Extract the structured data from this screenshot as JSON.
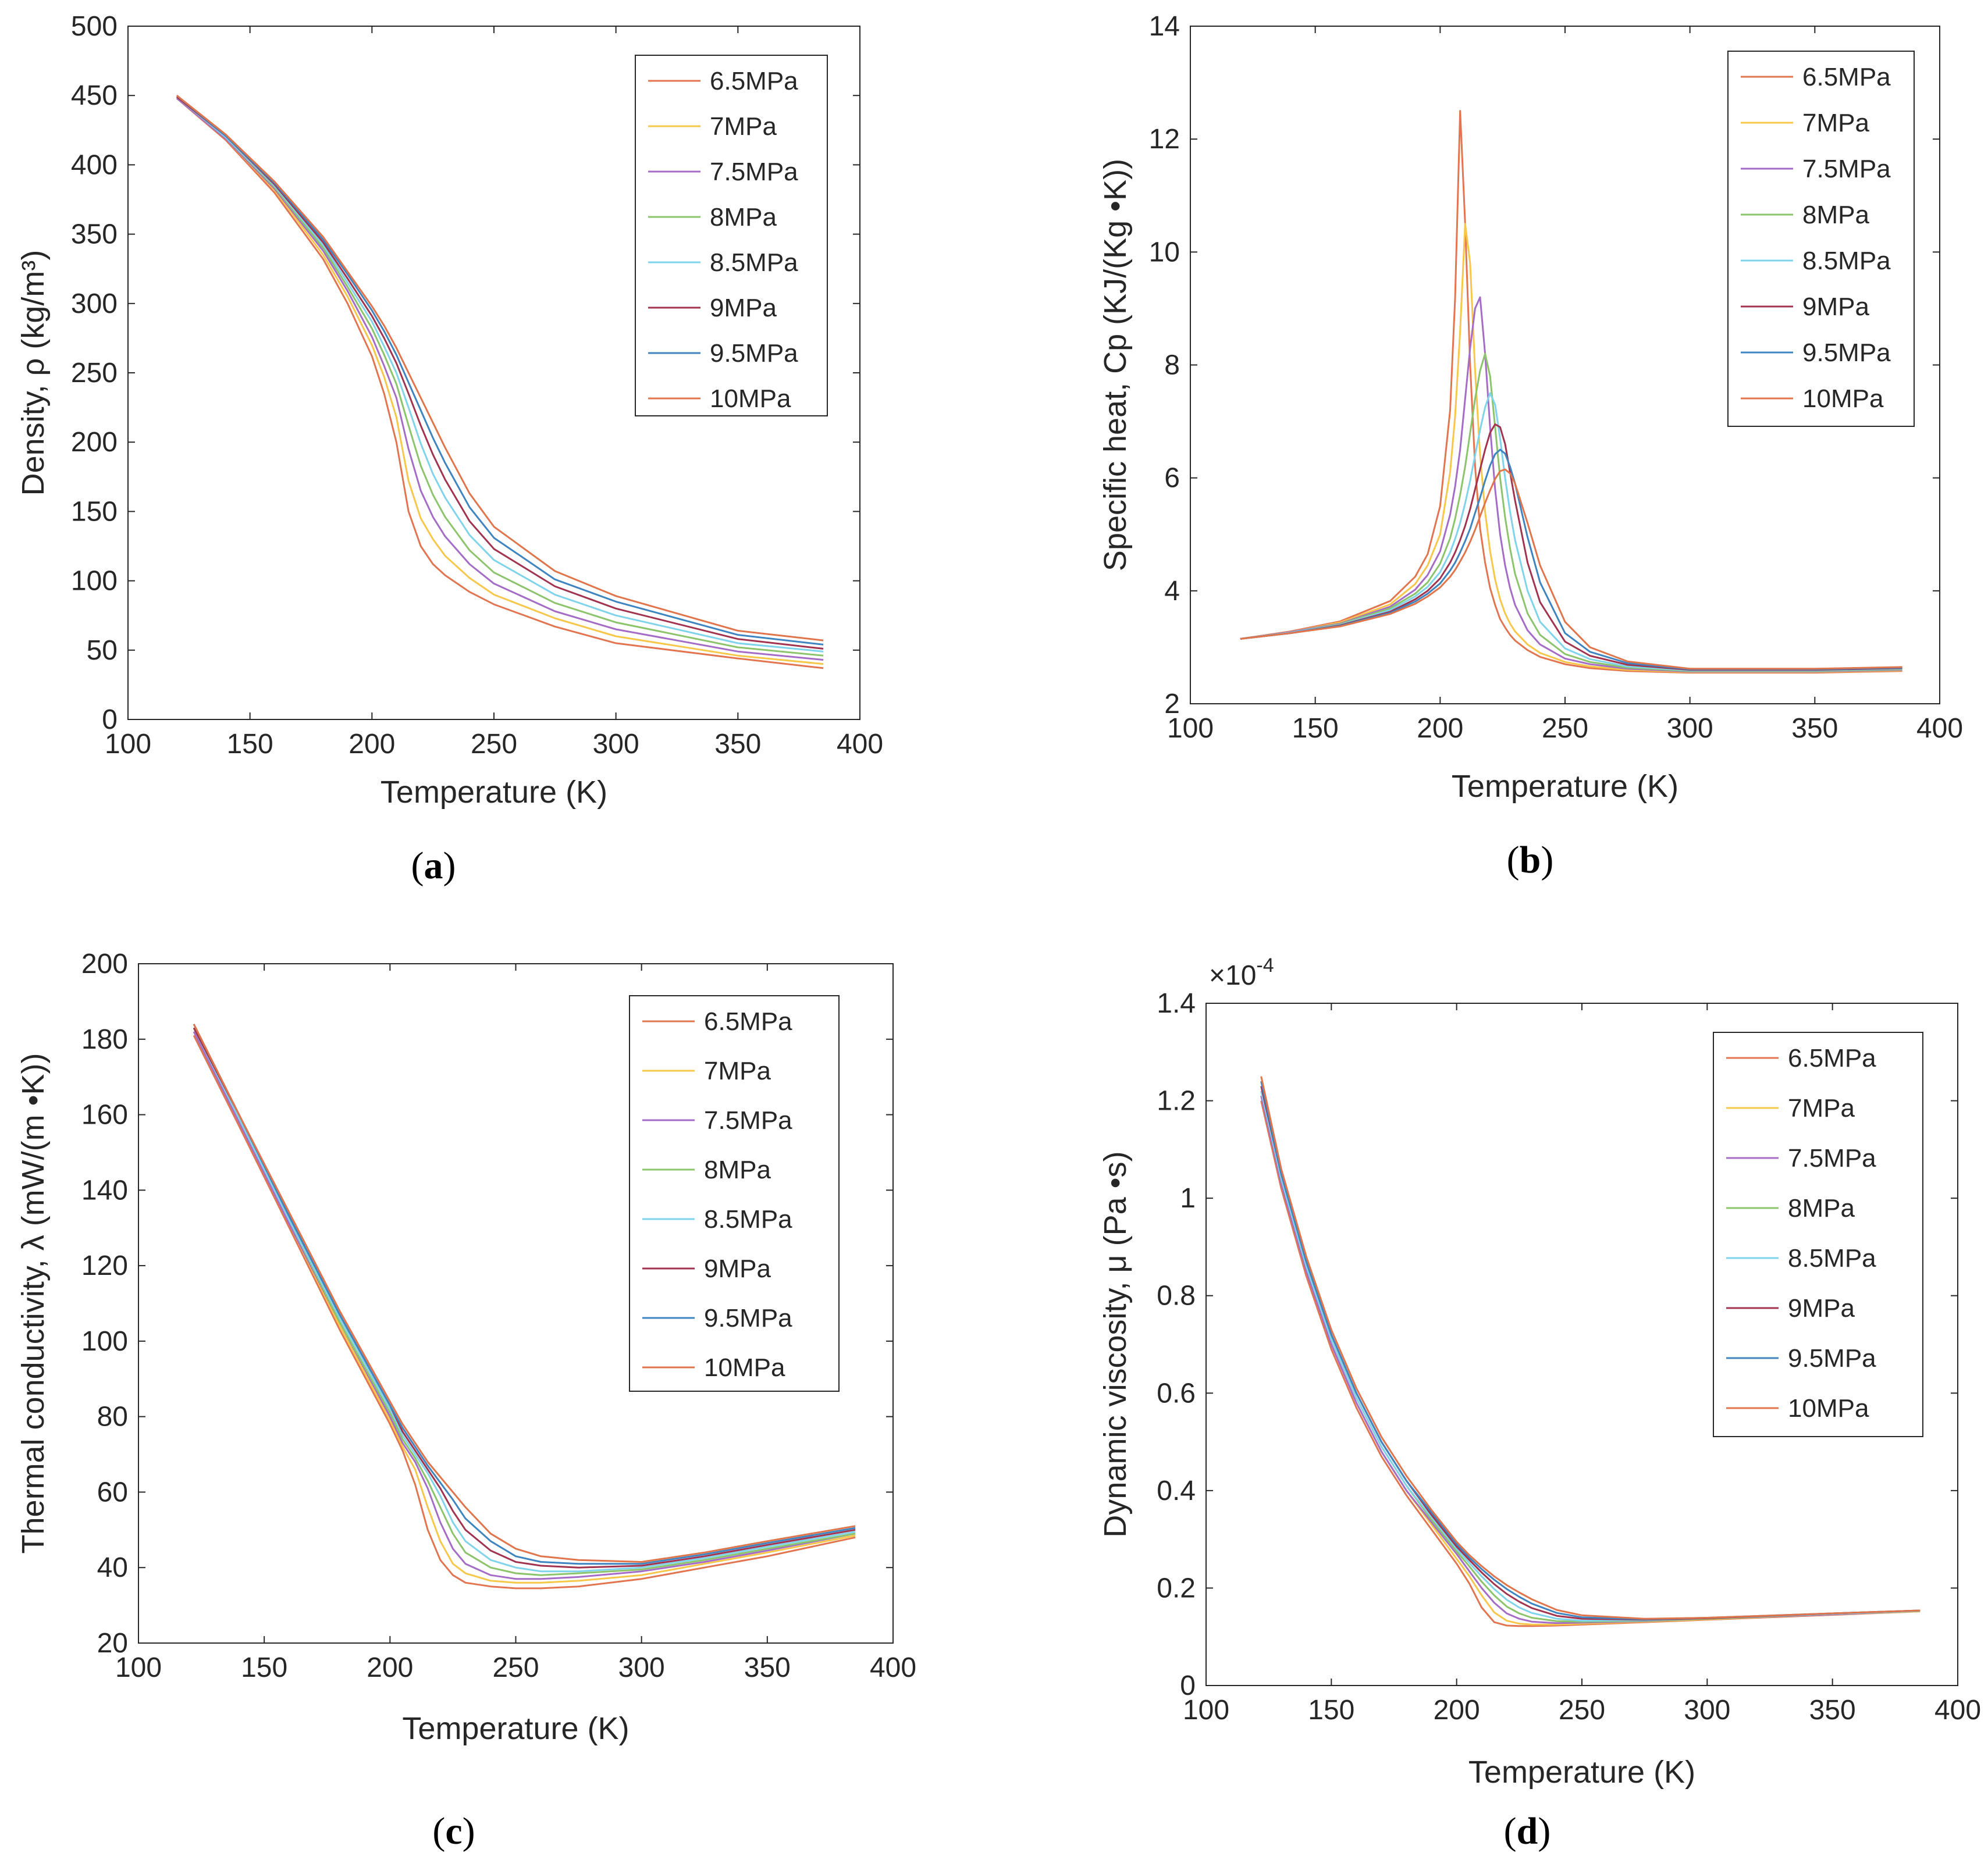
{
  "series_names": [
    "6.5MPa",
    "7MPa",
    "7.5MPa",
    "8MPa",
    "8.5MPa",
    "9MPa",
    "9.5MPa",
    "10MPa"
  ],
  "series_colors": [
    "#E2754F",
    "#F7C74A",
    "#A56CC7",
    "#8BC46A",
    "#7FD3EA",
    "#A2334F",
    "#3D84C0",
    "#E0744A"
  ],
  "chart_data": [
    {
      "type": "line",
      "panel": "(a)",
      "caption_letter": "a",
      "title": "",
      "xlabel": "Temperature (K)",
      "ylabel": "Density, ρ (kg/m³)",
      "xlim": [
        100,
        400
      ],
      "ylim": [
        0,
        500
      ],
      "xticks": [
        100,
        150,
        200,
        250,
        300,
        350,
        400
      ],
      "yticks": [
        0,
        50,
        100,
        150,
        200,
        250,
        300,
        350,
        400,
        450,
        500
      ],
      "legend_position": "top-right",
      "x": [
        120,
        140,
        160,
        180,
        190,
        200,
        205,
        210,
        215,
        220,
        225,
        230,
        240,
        250,
        275,
        300,
        350,
        385
      ],
      "series": [
        {
          "name": "6.5MPa",
          "values": [
            448,
            418,
            380,
            332,
            300,
            262,
            235,
            200,
            150,
            125,
            112,
            104,
            92,
            83,
            67,
            55,
            44,
            37
          ]
        },
        {
          "name": "7MPa",
          "values": [
            448,
            419,
            382,
            335,
            305,
            270,
            247,
            218,
            172,
            145,
            130,
            118,
            102,
            90,
            73,
            60,
            46,
            40
          ]
        },
        {
          "name": "7.5MPa",
          "values": [
            448,
            419,
            383,
            338,
            309,
            276,
            255,
            232,
            195,
            165,
            146,
            132,
            112,
            98,
            78,
            65,
            49,
            43
          ]
        },
        {
          "name": "8MPa",
          "values": [
            449,
            420,
            384,
            340,
            312,
            282,
            263,
            242,
            212,
            183,
            162,
            146,
            122,
            106,
            84,
            70,
            52,
            46
          ]
        },
        {
          "name": "8.5MPa",
          "values": [
            449,
            420,
            385,
            342,
            315,
            287,
            269,
            250,
            225,
            199,
            177,
            160,
            133,
            115,
            90,
            75,
            55,
            49
          ]
        },
        {
          "name": "9MPa",
          "values": [
            449,
            421,
            386,
            344,
            318,
            291,
            275,
            257,
            235,
            212,
            191,
            173,
            143,
            123,
            96,
            80,
            58,
            51
          ]
        },
        {
          "name": "9.5MPa",
          "values": [
            450,
            421,
            387,
            346,
            321,
            295,
            280,
            263,
            243,
            223,
            203,
            185,
            153,
            131,
            101,
            85,
            61,
            54
          ]
        },
        {
          "name": "10MPa",
          "values": [
            450,
            422,
            388,
            348,
            323,
            298,
            284,
            268,
            250,
            232,
            214,
            196,
            163,
            139,
            107,
            89,
            64,
            57
          ]
        }
      ]
    },
    {
      "type": "line",
      "panel": "(b)",
      "caption_letter": "b",
      "title": "",
      "xlabel": "Temperature (K)",
      "ylabel": "Specific heat, Cp (KJ/(Kg •K))",
      "xlim": [
        100,
        400
      ],
      "ylim": [
        2,
        14
      ],
      "xticks": [
        100,
        150,
        200,
        250,
        300,
        350,
        400
      ],
      "yticks": [
        2,
        4,
        6,
        8,
        10,
        12,
        14
      ],
      "legend_position": "top-right",
      "x": [
        120,
        140,
        160,
        180,
        190,
        195,
        200,
        204,
        206,
        208,
        210,
        212,
        214,
        216,
        218,
        220,
        222,
        224,
        226,
        228,
        230,
        235,
        240,
        250,
        260,
        275,
        300,
        350,
        385
      ],
      "series": [
        {
          "name": "6.5MPa",
          "values": [
            3.15,
            3.28,
            3.46,
            3.82,
            4.25,
            4.65,
            5.5,
            7.2,
            9.2,
            12.5,
            10.5,
            8.0,
            6.2,
            5.1,
            4.5,
            4.05,
            3.75,
            3.5,
            3.35,
            3.22,
            3.12,
            2.95,
            2.83,
            2.7,
            2.63,
            2.58,
            2.55,
            2.55,
            2.58
          ]
        },
        {
          "name": "7MPa",
          "values": [
            3.15,
            3.27,
            3.44,
            3.76,
            4.12,
            4.45,
            5.0,
            6.1,
            7.1,
            8.6,
            10.5,
            9.8,
            7.9,
            6.4,
            5.4,
            4.7,
            4.2,
            3.85,
            3.6,
            3.42,
            3.28,
            3.05,
            2.9,
            2.74,
            2.66,
            2.6,
            2.56,
            2.56,
            2.59
          ]
        },
        {
          "name": "7.5MPa",
          "values": [
            3.15,
            3.27,
            3.42,
            3.72,
            4.02,
            4.28,
            4.7,
            5.35,
            5.85,
            6.5,
            7.4,
            8.3,
            9.0,
            9.2,
            8.2,
            6.9,
            5.8,
            5.0,
            4.45,
            4.05,
            3.75,
            3.3,
            3.05,
            2.8,
            2.7,
            2.62,
            2.57,
            2.57,
            2.6
          ]
        },
        {
          "name": "8MPa",
          "values": [
            3.15,
            3.26,
            3.41,
            3.69,
            3.95,
            4.15,
            4.48,
            4.93,
            5.28,
            5.7,
            6.2,
            6.8,
            7.4,
            7.9,
            8.2,
            7.8,
            6.9,
            6.0,
            5.3,
            4.75,
            4.3,
            3.6,
            3.22,
            2.88,
            2.74,
            2.64,
            2.58,
            2.58,
            2.61
          ]
        },
        {
          "name": "8.5MPa",
          "values": [
            3.15,
            3.26,
            3.4,
            3.66,
            3.9,
            4.07,
            4.33,
            4.68,
            4.92,
            5.2,
            5.55,
            5.95,
            6.4,
            6.85,
            7.25,
            7.5,
            7.3,
            6.7,
            6.0,
            5.4,
            4.9,
            4.0,
            3.45,
            2.98,
            2.79,
            2.66,
            2.59,
            2.59,
            2.62
          ]
        },
        {
          "name": "9MPa",
          "values": [
            3.15,
            3.25,
            3.39,
            3.63,
            3.85,
            4.0,
            4.22,
            4.5,
            4.68,
            4.9,
            5.15,
            5.45,
            5.8,
            6.15,
            6.5,
            6.8,
            6.95,
            6.9,
            6.6,
            6.1,
            5.6,
            4.5,
            3.8,
            3.1,
            2.85,
            2.69,
            2.6,
            2.6,
            2.63
          ]
        },
        {
          "name": "9.5MPa",
          "values": [
            3.15,
            3.25,
            3.38,
            3.61,
            3.81,
            3.95,
            4.13,
            4.36,
            4.5,
            4.68,
            4.88,
            5.1,
            5.38,
            5.65,
            5.95,
            6.22,
            6.42,
            6.5,
            6.43,
            6.2,
            5.9,
            4.95,
            4.15,
            3.25,
            2.92,
            2.72,
            2.61,
            2.61,
            2.64
          ]
        },
        {
          "name": "10MPa",
          "values": [
            3.15,
            3.25,
            3.37,
            3.59,
            3.77,
            3.9,
            4.06,
            4.25,
            4.37,
            4.52,
            4.68,
            4.87,
            5.08,
            5.32,
            5.56,
            5.78,
            5.98,
            6.12,
            6.15,
            6.08,
            5.9,
            5.2,
            4.45,
            3.45,
            3.0,
            2.75,
            2.62,
            2.62,
            2.65
          ]
        }
      ]
    },
    {
      "type": "line",
      "panel": "(c)",
      "caption_letter": "c",
      "title": "",
      "xlabel": "Temperature (K)",
      "ylabel": "Thermal conductivity, λ (mW/(m •K))",
      "xlim": [
        100,
        400
      ],
      "ylim": [
        20,
        200
      ],
      "xticks": [
        100,
        150,
        200,
        250,
        300,
        350,
        400
      ],
      "yticks": [
        20,
        40,
        60,
        80,
        100,
        120,
        140,
        160,
        180,
        200
      ],
      "legend_position": "top-right",
      "x": [
        122,
        140,
        160,
        180,
        200,
        205,
        210,
        215,
        220,
        225,
        230,
        240,
        250,
        260,
        275,
        300,
        325,
        350,
        385
      ],
      "series": [
        {
          "name": "6.5MPa",
          "values": [
            181,
            157,
            130,
            103,
            78,
            71,
            62,
            50,
            42,
            38,
            36,
            35,
            34.5,
            34.5,
            35,
            37,
            40,
            43,
            48
          ]
        },
        {
          "name": "7MPa",
          "values": [
            182,
            158,
            131,
            104,
            79,
            72,
            66,
            56,
            47,
            41,
            38.5,
            36.5,
            36,
            36,
            36.5,
            38,
            41,
            44,
            48.5
          ]
        },
        {
          "name": "7.5MPa",
          "values": [
            182,
            158,
            131,
            105,
            80,
            73,
            68,
            61,
            52,
            45,
            41,
            38,
            37,
            37,
            37.5,
            39,
            41.5,
            44.5,
            49
          ]
        },
        {
          "name": "8MPa",
          "values": [
            183,
            159,
            132,
            105,
            81,
            74,
            69,
            63,
            56,
            49,
            44,
            40,
            38.5,
            38,
            38.5,
            39.5,
            42,
            45,
            49
          ]
        },
        {
          "name": "8.5MPa",
          "values": [
            183,
            159,
            132,
            106,
            82,
            75,
            70,
            65,
            59,
            52,
            47,
            42,
            40,
            39,
            39,
            40,
            42.5,
            45.5,
            49.5
          ]
        },
        {
          "name": "9MPa",
          "values": [
            183,
            160,
            133,
            107,
            83,
            76,
            71,
            66,
            61,
            55,
            50,
            44.5,
            41.5,
            40.5,
            40,
            40.5,
            43,
            46,
            50
          ]
        },
        {
          "name": "9.5MPa",
          "values": [
            184,
            160,
            133,
            107,
            83,
            77,
            72,
            67,
            62.5,
            58,
            53,
            47,
            43,
            41.5,
            41,
            41,
            43.5,
            46.5,
            50.5
          ]
        },
        {
          "name": "10MPa",
          "values": [
            184,
            160,
            134,
            108,
            84,
            78,
            73,
            68,
            64,
            60,
            56,
            49,
            45,
            43,
            42,
            41.5,
            44,
            47,
            51
          ]
        }
      ]
    },
    {
      "type": "line",
      "panel": "(d)",
      "caption_letter": "d",
      "title": "",
      "xlabel": "Temperature (K)",
      "ylabel": "Dynamic viscosity, μ (Pa •s)",
      "y_multiplier": "×10",
      "y_multiplier_exp": "-4",
      "xlim": [
        100,
        400
      ],
      "ylim": [
        0,
        1.4
      ],
      "xticks": [
        100,
        150,
        200,
        250,
        300,
        350,
        400
      ],
      "yticks": [
        0,
        0.2,
        0.4,
        0.6,
        0.8,
        1,
        1.2,
        1.4
      ],
      "ytick_labels": [
        "0",
        "0.2",
        "0.4",
        "0.6",
        "0.8",
        "1",
        "1.2",
        "1.4"
      ],
      "legend_position": "top-right",
      "x": [
        122,
        130,
        140,
        150,
        160,
        170,
        180,
        190,
        200,
        205,
        210,
        215,
        220,
        225,
        230,
        240,
        250,
        275,
        300,
        350,
        385
      ],
      "series": [
        {
          "name": "6.5MPa",
          "values": [
            1.2,
            1.02,
            0.84,
            0.69,
            0.57,
            0.47,
            0.39,
            0.32,
            0.25,
            0.21,
            0.16,
            0.13,
            0.123,
            0.122,
            0.122,
            0.123,
            0.125,
            0.13,
            0.135,
            0.145,
            0.152
          ]
        },
        {
          "name": "7MPa",
          "values": [
            1.21,
            1.03,
            0.85,
            0.7,
            0.58,
            0.48,
            0.4,
            0.33,
            0.26,
            0.225,
            0.185,
            0.15,
            0.133,
            0.127,
            0.125,
            0.125,
            0.127,
            0.131,
            0.136,
            0.146,
            0.152
          ]
        },
        {
          "name": "7.5MPa",
          "values": [
            1.21,
            1.03,
            0.85,
            0.7,
            0.58,
            0.48,
            0.4,
            0.335,
            0.27,
            0.235,
            0.2,
            0.17,
            0.148,
            0.137,
            0.131,
            0.128,
            0.129,
            0.132,
            0.137,
            0.146,
            0.153
          ]
        },
        {
          "name": "8MPa",
          "values": [
            1.22,
            1.04,
            0.86,
            0.71,
            0.59,
            0.49,
            0.41,
            0.34,
            0.275,
            0.245,
            0.213,
            0.185,
            0.162,
            0.148,
            0.139,
            0.132,
            0.131,
            0.133,
            0.137,
            0.147,
            0.153
          ]
        },
        {
          "name": "8.5MPa",
          "values": [
            1.22,
            1.04,
            0.86,
            0.71,
            0.59,
            0.49,
            0.41,
            0.345,
            0.28,
            0.252,
            0.224,
            0.198,
            0.176,
            0.16,
            0.149,
            0.137,
            0.133,
            0.134,
            0.138,
            0.147,
            0.153
          ]
        },
        {
          "name": "9MPa",
          "values": [
            1.23,
            1.05,
            0.87,
            0.72,
            0.6,
            0.5,
            0.42,
            0.35,
            0.285,
            0.258,
            0.232,
            0.208,
            0.188,
            0.172,
            0.159,
            0.143,
            0.137,
            0.135,
            0.138,
            0.148,
            0.154
          ]
        },
        {
          "name": "9.5MPa",
          "values": [
            1.24,
            1.05,
            0.87,
            0.72,
            0.6,
            0.5,
            0.42,
            0.355,
            0.29,
            0.263,
            0.239,
            0.217,
            0.198,
            0.182,
            0.168,
            0.149,
            0.14,
            0.136,
            0.139,
            0.148,
            0.154
          ]
        },
        {
          "name": "10MPa",
          "values": [
            1.25,
            1.06,
            0.88,
            0.73,
            0.61,
            0.51,
            0.43,
            0.36,
            0.295,
            0.268,
            0.245,
            0.224,
            0.206,
            0.191,
            0.177,
            0.155,
            0.144,
            0.137,
            0.139,
            0.148,
            0.154
          ]
        }
      ]
    }
  ]
}
